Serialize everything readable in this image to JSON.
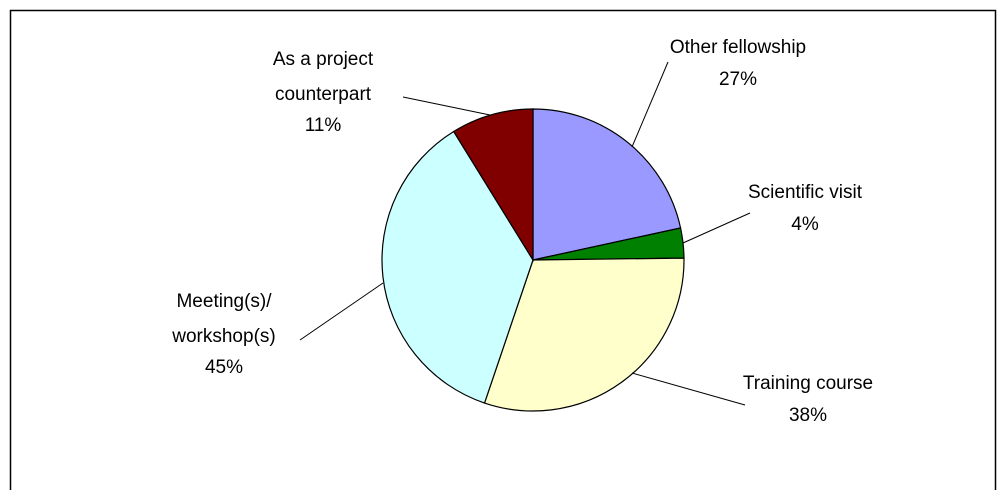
{
  "chart_data": {
    "type": "pie",
    "categories": [
      "Other fellowship",
      "Scientific visit",
      "Training course",
      "Meeting(s)/\nworkshop(s)",
      "As a project\ncounterpart"
    ],
    "values": [
      27,
      4,
      38,
      45,
      11
    ],
    "value_labels": [
      "27%",
      "4%",
      "38%",
      "45%",
      "11%"
    ],
    "colors": [
      "#9999ff",
      "#008000",
      "#ffffcc",
      "#ccffff",
      "#800000"
    ]
  }
}
